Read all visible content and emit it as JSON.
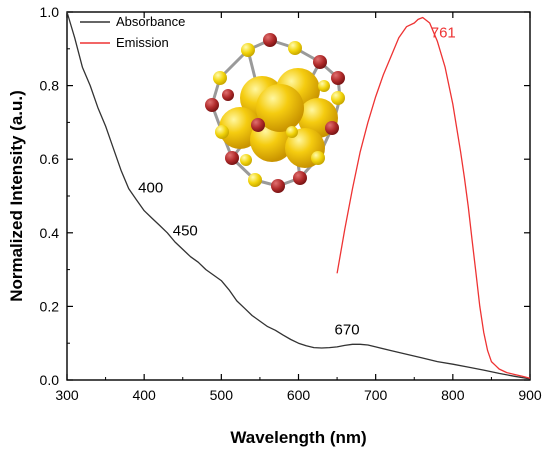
{
  "chart_data": {
    "type": "line",
    "xlabel": "Wavelength (nm)",
    "ylabel": "Normalized Intensity (a.u.)",
    "xlim": [
      300,
      900
    ],
    "ylim": [
      0,
      1.0
    ],
    "xticks": [
      300,
      400,
      500,
      600,
      700,
      800,
      900
    ],
    "yticks": [
      0.0,
      0.2,
      0.4,
      0.6,
      0.8,
      1.0
    ],
    "xtick_labels": [
      "300",
      "400",
      "500",
      "600",
      "700",
      "800",
      "900"
    ],
    "ytick_labels": [
      "0.0",
      "0.2",
      "0.4",
      "0.6",
      "0.8",
      "1.0"
    ],
    "grid": false,
    "legend_position": "top-left",
    "series": [
      {
        "name": "Absorbance",
        "color": "#333333",
        "x": [
          300,
          310,
          320,
          330,
          340,
          350,
          360,
          370,
          380,
          390,
          400,
          410,
          420,
          430,
          440,
          450,
          460,
          470,
          480,
          490,
          500,
          510,
          520,
          530,
          540,
          550,
          560,
          570,
          580,
          590,
          600,
          610,
          620,
          630,
          640,
          650,
          660,
          670,
          680,
          690,
          700,
          720,
          740,
          760,
          780,
          800,
          820,
          840,
          860,
          880,
          900
        ],
        "y": [
          1.0,
          0.93,
          0.85,
          0.8,
          0.74,
          0.69,
          0.63,
          0.57,
          0.52,
          0.49,
          0.46,
          0.44,
          0.42,
          0.4,
          0.375,
          0.355,
          0.335,
          0.32,
          0.3,
          0.285,
          0.27,
          0.245,
          0.215,
          0.195,
          0.175,
          0.16,
          0.145,
          0.135,
          0.122,
          0.11,
          0.1,
          0.093,
          0.088,
          0.087,
          0.088,
          0.09,
          0.094,
          0.097,
          0.097,
          0.095,
          0.09,
          0.08,
          0.07,
          0.06,
          0.05,
          0.043,
          0.035,
          0.027,
          0.018,
          0.01,
          0.003
        ]
      },
      {
        "name": "Emission",
        "color": "#ee3333",
        "x": [
          650,
          660,
          670,
          680,
          690,
          700,
          710,
          720,
          730,
          740,
          750,
          755,
          761,
          770,
          780,
          790,
          800,
          810,
          815,
          820,
          825,
          830,
          835,
          840,
          845,
          850,
          855,
          860,
          870,
          880,
          890,
          900
        ],
        "y": [
          0.29,
          0.41,
          0.52,
          0.62,
          0.7,
          0.77,
          0.83,
          0.88,
          0.93,
          0.96,
          0.97,
          0.98,
          0.985,
          0.97,
          0.92,
          0.85,
          0.75,
          0.62,
          0.55,
          0.47,
          0.38,
          0.29,
          0.2,
          0.13,
          0.08,
          0.05,
          0.04,
          0.03,
          0.02,
          0.015,
          0.01,
          0.005
        ]
      }
    ],
    "annotations": [
      {
        "text": "400",
        "x": 400,
        "y": 0.46,
        "color": "#000000"
      },
      {
        "text": "450",
        "x": 450,
        "y": 0.355,
        "color": "#000000"
      },
      {
        "text": "670",
        "x": 670,
        "y": 0.097,
        "color": "#000000"
      },
      {
        "text": "761",
        "x": 761,
        "y": 0.985,
        "color": "#ee3333"
      }
    ]
  }
}
